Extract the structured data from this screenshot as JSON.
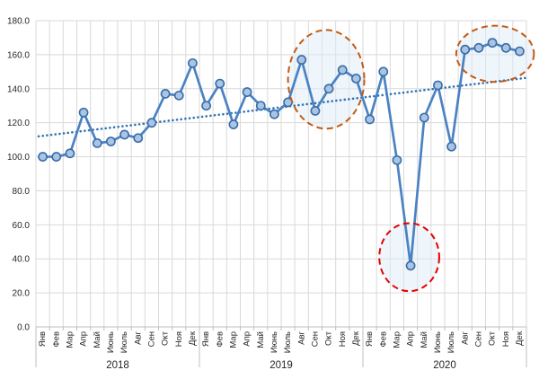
{
  "chart_data": {
    "type": "line",
    "title": "",
    "legend": "none",
    "grid": true,
    "ylim": [
      0,
      180
    ],
    "ytick_step": 20,
    "ytick_labels": [
      "0.0",
      "20.0",
      "40.0",
      "60.0",
      "80.0",
      "100.0",
      "120.0",
      "140.0",
      "160.0",
      "180.0"
    ],
    "years": [
      "2018",
      "2019",
      "2020"
    ],
    "month_labels": [
      "Янв",
      "Фев",
      "Мар",
      "Апр",
      "Май",
      "Июнь",
      "Июль",
      "Авг",
      "Сен",
      "Окт",
      "Ноя",
      "Дек"
    ],
    "series": [
      {
        "name": "monthly-index",
        "values": [
          100,
          100,
          102,
          126,
          108,
          109,
          113,
          111,
          120,
          137,
          136,
          155,
          130,
          143,
          119,
          138,
          130,
          125,
          132,
          157,
          127,
          140,
          151,
          146,
          122,
          150,
          98,
          36,
          123,
          142,
          106,
          163,
          164,
          167,
          164,
          162
        ]
      }
    ],
    "trendline": {
      "name": "linear-trend",
      "style": "dotted",
      "start_value": 112,
      "end_value": 146.5
    },
    "annotations": [
      {
        "name": "highlight-aug-dec-2019",
        "shape": "ellipse",
        "stroke": "#C55A11",
        "cx_month": 20.8,
        "cy_value": 145.5,
        "rx_months": 2.8,
        "ry_values": 29
      },
      {
        "name": "highlight-apr-2020-drop",
        "shape": "ellipse",
        "stroke": "#E60000",
        "cx_month": 26.9,
        "cy_value": 41,
        "rx_months": 2.2,
        "ry_values": 20
      },
      {
        "name": "highlight-aug-dec-2020",
        "shape": "ellipse",
        "stroke": "#C55A11",
        "cx_month": 33.2,
        "cy_value": 160.5,
        "rx_months": 2.85,
        "ry_values": 16.5
      }
    ]
  },
  "colors": {
    "background": "#FFFFFF",
    "series_line": "#4A82C4",
    "marker_fill": "#A9C5E5",
    "marker_stroke": "#3A6BA6",
    "trendline": "#2E74B5",
    "gridline": "#D9D9D9",
    "axis": "#BFBFBF",
    "annotation_fill": "#DEEBF7",
    "label_text": "#262626"
  }
}
